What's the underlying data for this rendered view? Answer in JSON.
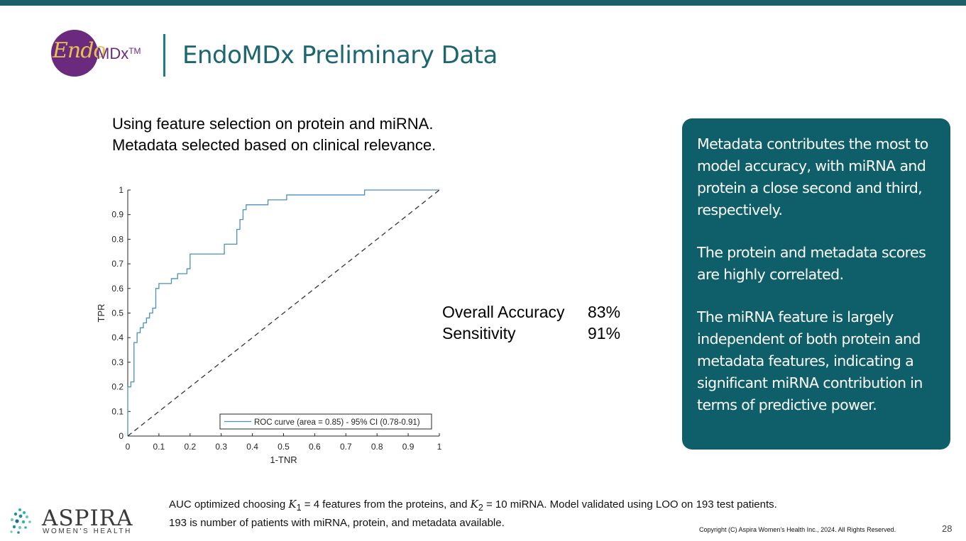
{
  "colors": {
    "teal_dark": "#0e5f69",
    "teal_title": "#1b6670",
    "logo_purple": "#6b2a7e",
    "logo_gold": "#e6c14e",
    "roc_line": "#4a8fbf"
  },
  "header": {
    "logo": {
      "endo": "Endo",
      "mdx": "MDx",
      "tm": "TM"
    },
    "title": "EndoMDx Preliminary Data"
  },
  "intro": {
    "line1": "Using feature selection on protein and miRNA.",
    "line2": "Metadata selected based on clinical relevance."
  },
  "metrics": [
    {
      "label": "Overall Accuracy",
      "value": "83%"
    },
    {
      "label": "Sensitivity",
      "value": "91%"
    }
  ],
  "callout": {
    "paragraphs": [
      "Metadata contributes the most to model accuracy, with miRNA and protein a close second and third, respectively.",
      "The protein and metadata scores are highly correlated.",
      "The miRNA feature is largely independent of both protein and metadata features, indicating a significant miRNA contribution in terms of predictive power."
    ]
  },
  "footnote": {
    "p1": "AUC optimized choosing ",
    "k1": "K",
    "k1_sub": "1",
    "k1_eq": " = 4",
    "p2": " features from the proteins, and ",
    "k2": "K",
    "k2_sub": "2",
    "k2_eq": " = 10",
    "p3": " miRNA. Model validated using LOO on 193 test patients. 193 is number of patients with miRNA, protein, and metadata available."
  },
  "footer": {
    "brand": "ASPIRA",
    "tagline": "WOMEN'S HEALTH",
    "copyright": "Copyright (C) Aspira Women's Health Inc., 2024. All Rights Reserved.",
    "page_number": "28"
  },
  "chart_data": {
    "type": "line",
    "title": "",
    "xlabel": "1-TNR",
    "ylabel": "TPR",
    "xlim": [
      0,
      1
    ],
    "ylim": [
      0,
      1
    ],
    "x_ticks": [
      "0",
      "0.1",
      "0.2",
      "0.3",
      "0.4",
      "0.5",
      "0.6",
      "0.7",
      "0.8",
      "0.9",
      "1"
    ],
    "y_ticks": [
      "0",
      "0.1",
      "0.2",
      "0.3",
      "0.4",
      "0.5",
      "0.6",
      "0.7",
      "0.8",
      "0.9",
      "1"
    ],
    "legend_position": "bottom-right",
    "series": [
      {
        "name": "ROC curve (area = 0.85) - 95% CI (0.78-0.91)",
        "style": "solid",
        "x": [
          0,
          0,
          0.01,
          0.01,
          0.02,
          0.02,
          0.03,
          0.03,
          0.04,
          0.04,
          0.05,
          0.05,
          0.06,
          0.06,
          0.07,
          0.07,
          0.08,
          0.08,
          0.09,
          0.09,
          0.1,
          0.1,
          0.14,
          0.14,
          0.16,
          0.16,
          0.19,
          0.19,
          0.2,
          0.2,
          0.31,
          0.31,
          0.35,
          0.35,
          0.36,
          0.36,
          0.37,
          0.37,
          0.38,
          0.38,
          0.45,
          0.45,
          0.51,
          0.51,
          0.76,
          0.76,
          1.0
        ],
        "y": [
          0,
          0.2,
          0.2,
          0.22,
          0.22,
          0.38,
          0.38,
          0.42,
          0.42,
          0.44,
          0.44,
          0.46,
          0.46,
          0.48,
          0.48,
          0.5,
          0.5,
          0.52,
          0.52,
          0.6,
          0.6,
          0.62,
          0.62,
          0.64,
          0.64,
          0.66,
          0.66,
          0.68,
          0.68,
          0.74,
          0.74,
          0.78,
          0.78,
          0.84,
          0.84,
          0.88,
          0.88,
          0.92,
          0.92,
          0.94,
          0.94,
          0.96,
          0.96,
          0.98,
          0.98,
          1.0,
          1.0
        ]
      },
      {
        "name": "chance",
        "style": "dashed",
        "x": [
          0,
          1
        ],
        "y": [
          0,
          1
        ]
      }
    ]
  }
}
